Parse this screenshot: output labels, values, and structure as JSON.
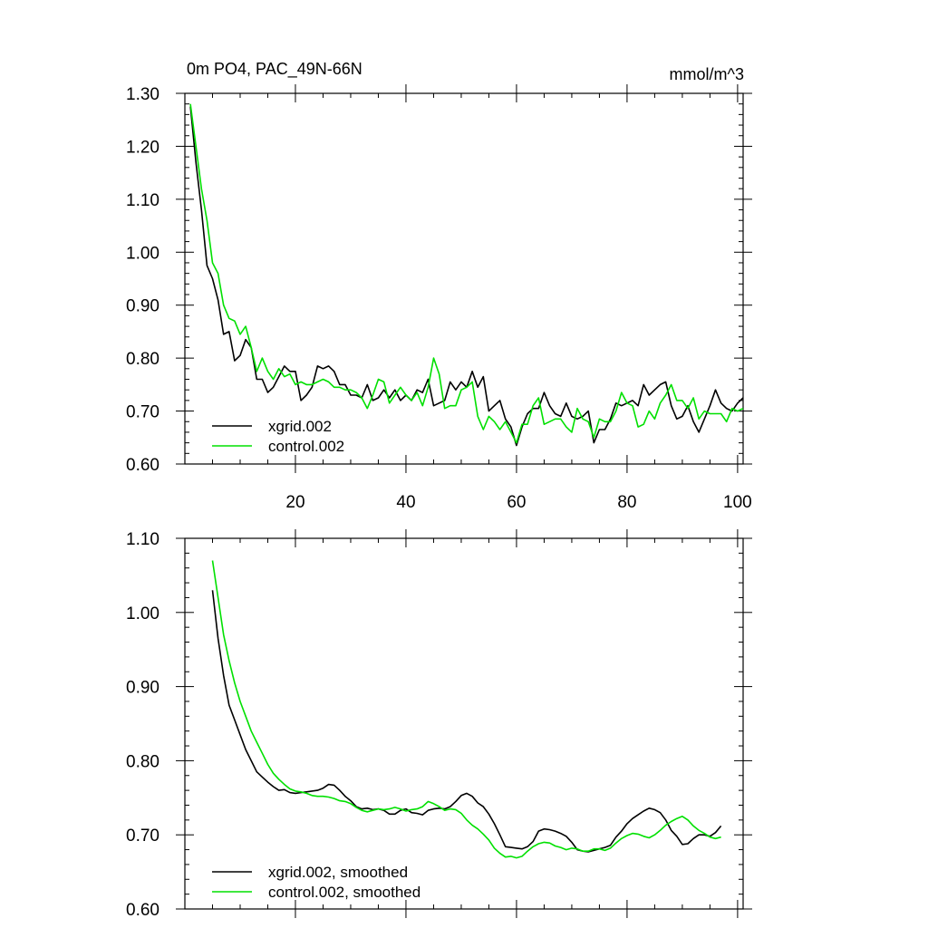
{
  "chart_data": [
    {
      "type": "line",
      "title": "0m PO4, PAC_49N-66N",
      "units": "mmol/m^3",
      "xlim": [
        0,
        101
      ],
      "ylim": [
        0.6,
        1.3
      ],
      "x_ticks": [
        20,
        40,
        60,
        80,
        100
      ],
      "x_tick_labels": [
        "20",
        "40",
        "60",
        "80",
        "100"
      ],
      "y_ticks": [
        0.6,
        0.7,
        0.8,
        0.9,
        1.0,
        1.1,
        1.2,
        1.3
      ],
      "y_tick_labels": [
        "0.60",
        "0.70",
        "0.80",
        "0.90",
        "1.00",
        "1.10",
        "1.20",
        "1.30"
      ],
      "legend_position": "bottom-left",
      "series": [
        {
          "name": "xgrid.002",
          "color": "#000000",
          "x": [
            1,
            2,
            3,
            4,
            5,
            6,
            7,
            8,
            9,
            10,
            11,
            12,
            13,
            14,
            15,
            16,
            17,
            18,
            19,
            20,
            21,
            22,
            23,
            24,
            25,
            26,
            27,
            28,
            29,
            30,
            31,
            32,
            33,
            34,
            35,
            36,
            37,
            38,
            39,
            40,
            41,
            42,
            43,
            44,
            45,
            46,
            47,
            48,
            49,
            50,
            51,
            52,
            53,
            54,
            55,
            56,
            57,
            58,
            59,
            60,
            61,
            62,
            63,
            64,
            65,
            66,
            67,
            68,
            69,
            70,
            71,
            72,
            73,
            74,
            75,
            76,
            77,
            78,
            79,
            80,
            81,
            82,
            83,
            84,
            85,
            86,
            87,
            88,
            89,
            90,
            91,
            92,
            93,
            94,
            95,
            96,
            97,
            98,
            99,
            100,
            101
          ],
          "y": [
            1.275,
            1.17,
            1.08,
            0.975,
            0.95,
            0.91,
            0.845,
            0.85,
            0.795,
            0.805,
            0.835,
            0.82,
            0.76,
            0.76,
            0.735,
            0.745,
            0.765,
            0.785,
            0.775,
            0.775,
            0.72,
            0.73,
            0.745,
            0.785,
            0.78,
            0.785,
            0.775,
            0.75,
            0.75,
            0.73,
            0.73,
            0.725,
            0.75,
            0.72,
            0.725,
            0.74,
            0.725,
            0.74,
            0.72,
            0.73,
            0.72,
            0.74,
            0.735,
            0.76,
            0.71,
            0.715,
            0.72,
            0.755,
            0.74,
            0.755,
            0.745,
            0.775,
            0.745,
            0.765,
            0.7,
            0.71,
            0.72,
            0.685,
            0.67,
            0.635,
            0.67,
            0.695,
            0.705,
            0.705,
            0.735,
            0.71,
            0.695,
            0.69,
            0.715,
            0.69,
            0.685,
            0.69,
            0.7,
            0.64,
            0.665,
            0.665,
            0.685,
            0.715,
            0.71,
            0.715,
            0.72,
            0.71,
            0.75,
            0.73,
            0.74,
            0.75,
            0.755,
            0.71,
            0.685,
            0.69,
            0.71,
            0.68,
            0.66,
            0.685,
            0.71,
            0.74,
            0.715,
            0.705,
            0.7,
            0.715,
            0.725
          ]
        },
        {
          "name": "control.002",
          "color": "#00e000",
          "x": [
            1,
            2,
            3,
            4,
            5,
            6,
            7,
            8,
            9,
            10,
            11,
            12,
            13,
            14,
            15,
            16,
            17,
            18,
            19,
            20,
            21,
            22,
            23,
            24,
            25,
            26,
            27,
            28,
            29,
            30,
            31,
            32,
            33,
            34,
            35,
            36,
            37,
            38,
            39,
            40,
            41,
            42,
            43,
            44,
            45,
            46,
            47,
            48,
            49,
            50,
            51,
            52,
            53,
            54,
            55,
            56,
            57,
            58,
            59,
            60,
            61,
            62,
            63,
            64,
            65,
            66,
            67,
            68,
            69,
            70,
            71,
            72,
            73,
            74,
            75,
            76,
            77,
            78,
            79,
            80,
            81,
            82,
            83,
            84,
            85,
            86,
            87,
            88,
            89,
            90,
            91,
            92,
            93,
            94,
            95,
            96,
            97,
            98,
            99,
            100,
            101
          ],
          "y": [
            1.28,
            1.2,
            1.12,
            1.06,
            0.98,
            0.96,
            0.9,
            0.875,
            0.87,
            0.845,
            0.86,
            0.82,
            0.775,
            0.8,
            0.775,
            0.76,
            0.78,
            0.765,
            0.77,
            0.75,
            0.755,
            0.75,
            0.75,
            0.755,
            0.76,
            0.755,
            0.745,
            0.745,
            0.74,
            0.74,
            0.735,
            0.725,
            0.705,
            0.73,
            0.76,
            0.755,
            0.715,
            0.73,
            0.745,
            0.73,
            0.72,
            0.735,
            0.71,
            0.745,
            0.8,
            0.77,
            0.705,
            0.71,
            0.71,
            0.74,
            0.745,
            0.755,
            0.69,
            0.665,
            0.69,
            0.68,
            0.665,
            0.68,
            0.66,
            0.64,
            0.675,
            0.675,
            0.71,
            0.725,
            0.675,
            0.68,
            0.685,
            0.685,
            0.67,
            0.66,
            0.705,
            0.685,
            0.68,
            0.65,
            0.685,
            0.68,
            0.68,
            0.7,
            0.735,
            0.715,
            0.71,
            0.67,
            0.675,
            0.7,
            0.685,
            0.715,
            0.73,
            0.75,
            0.72,
            0.72,
            0.705,
            0.725,
            0.685,
            0.7,
            0.695,
            0.695,
            0.695,
            0.68,
            0.705,
            0.7,
            0.705
          ]
        }
      ]
    },
    {
      "type": "line",
      "xlim": [
        0,
        101
      ],
      "ylim": [
        0.6,
        1.1
      ],
      "x_ticks": [
        20,
        40,
        60,
        80,
        100
      ],
      "y_ticks": [
        0.6,
        0.7,
        0.8,
        0.9,
        1.0,
        1.1
      ],
      "y_tick_labels": [
        "0.60",
        "0.70",
        "0.80",
        "0.90",
        "1.00",
        "1.10"
      ],
      "legend_position": "bottom-left",
      "series": [
        {
          "name": "xgrid.002, smoothed",
          "color": "#000000",
          "x": [
            5,
            6,
            7,
            8,
            9,
            10,
            11,
            12,
            13,
            14,
            15,
            16,
            17,
            18,
            19,
            20,
            21,
            22,
            23,
            24,
            25,
            26,
            27,
            28,
            29,
            30,
            31,
            32,
            33,
            34,
            35,
            36,
            37,
            38,
            39,
            40,
            41,
            42,
            43,
            44,
            45,
            46,
            47,
            48,
            49,
            50,
            51,
            52,
            53,
            54,
            55,
            56,
            57,
            58,
            59,
            60,
            61,
            62,
            63,
            64,
            65,
            66,
            67,
            68,
            69,
            70,
            71,
            72,
            73,
            74,
            75,
            76,
            77,
            78,
            79,
            80,
            81,
            82,
            83,
            84,
            85,
            86,
            87,
            88,
            89,
            90,
            91,
            92,
            93,
            94,
            95,
            96,
            97
          ],
          "y": [
            1.03,
            0.965,
            0.915,
            0.875,
            0.855,
            0.835,
            0.815,
            0.8,
            0.785,
            0.778,
            0.771,
            0.765,
            0.76,
            0.761,
            0.757,
            0.756,
            0.757,
            0.758,
            0.759,
            0.76,
            0.763,
            0.768,
            0.767,
            0.76,
            0.752,
            0.746,
            0.738,
            0.735,
            0.736,
            0.734,
            0.735,
            0.733,
            0.728,
            0.728,
            0.733,
            0.735,
            0.73,
            0.729,
            0.727,
            0.733,
            0.735,
            0.736,
            0.735,
            0.738,
            0.745,
            0.753,
            0.756,
            0.752,
            0.743,
            0.738,
            0.728,
            0.715,
            0.7,
            0.684,
            0.683,
            0.682,
            0.681,
            0.684,
            0.691,
            0.705,
            0.708,
            0.707,
            0.705,
            0.702,
            0.698,
            0.69,
            0.68,
            0.678,
            0.677,
            0.679,
            0.681,
            0.683,
            0.686,
            0.697,
            0.705,
            0.715,
            0.722,
            0.727,
            0.732,
            0.736,
            0.734,
            0.73,
            0.72,
            0.706,
            0.698,
            0.687,
            0.688,
            0.695,
            0.7,
            0.7,
            0.698,
            0.703,
            0.712
          ]
        },
        {
          "name": "control.002, smoothed",
          "color": "#00e000",
          "x": [
            5,
            6,
            7,
            8,
            9,
            10,
            11,
            12,
            13,
            14,
            15,
            16,
            17,
            18,
            19,
            20,
            21,
            22,
            23,
            24,
            25,
            26,
            27,
            28,
            29,
            30,
            31,
            32,
            33,
            34,
            35,
            36,
            37,
            38,
            39,
            40,
            41,
            42,
            43,
            44,
            45,
            46,
            47,
            48,
            49,
            50,
            51,
            52,
            53,
            54,
            55,
            56,
            57,
            58,
            59,
            60,
            61,
            62,
            63,
            64,
            65,
            66,
            67,
            68,
            69,
            70,
            71,
            72,
            73,
            74,
            75,
            76,
            77,
            78,
            79,
            80,
            81,
            82,
            83,
            84,
            85,
            86,
            87,
            88,
            89,
            90,
            91,
            92,
            93,
            94,
            95,
            96,
            97
          ],
          "y": [
            1.07,
            1.02,
            0.97,
            0.935,
            0.905,
            0.88,
            0.86,
            0.84,
            0.825,
            0.81,
            0.795,
            0.783,
            0.775,
            0.768,
            0.762,
            0.759,
            0.758,
            0.756,
            0.753,
            0.752,
            0.752,
            0.751,
            0.749,
            0.746,
            0.745,
            0.742,
            0.737,
            0.733,
            0.731,
            0.733,
            0.735,
            0.734,
            0.735,
            0.737,
            0.735,
            0.732,
            0.734,
            0.735,
            0.738,
            0.745,
            0.742,
            0.738,
            0.733,
            0.735,
            0.734,
            0.729,
            0.72,
            0.713,
            0.708,
            0.701,
            0.693,
            0.682,
            0.675,
            0.67,
            0.671,
            0.669,
            0.671,
            0.678,
            0.684,
            0.688,
            0.69,
            0.689,
            0.685,
            0.683,
            0.68,
            0.682,
            0.681,
            0.678,
            0.678,
            0.681,
            0.681,
            0.679,
            0.682,
            0.689,
            0.695,
            0.699,
            0.702,
            0.701,
            0.698,
            0.696,
            0.7,
            0.706,
            0.713,
            0.718,
            0.722,
            0.725,
            0.72,
            0.712,
            0.706,
            0.702,
            0.697,
            0.695,
            0.697
          ]
        }
      ]
    }
  ]
}
